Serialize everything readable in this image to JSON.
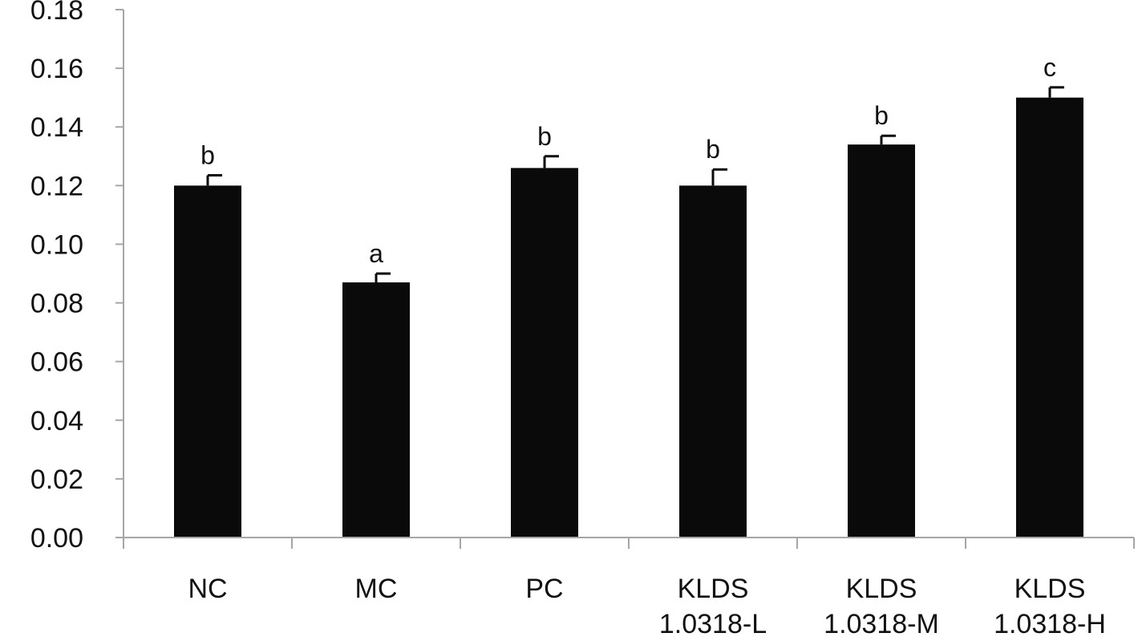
{
  "chart_data": {
    "type": "bar",
    "title": "",
    "xlabel": "",
    "ylabel": "",
    "ylim": [
      0,
      0.18
    ],
    "ytick_step": 0.02,
    "yticks": [
      "0.00",
      "0.02",
      "0.04",
      "0.06",
      "0.08",
      "0.10",
      "0.12",
      "0.14",
      "0.16",
      "0.18"
    ],
    "grid": false,
    "legend": "none",
    "bar_color": "#0a0a0a",
    "axis_color": "#a6a6a6",
    "categories": [
      [
        "NC"
      ],
      [
        "MC"
      ],
      [
        "PC"
      ],
      [
        "KLDS",
        "1.0318-L"
      ],
      [
        "KLDS",
        "1.0318-M"
      ],
      [
        "KLDS",
        "1.0318-H"
      ]
    ],
    "values": [
      0.12,
      0.087,
      0.126,
      0.12,
      0.134,
      0.15
    ],
    "errors": [
      0.0035,
      0.003,
      0.004,
      0.0055,
      0.003,
      0.0035
    ],
    "significance": [
      "b",
      "a",
      "b",
      "b",
      "b",
      "c"
    ]
  }
}
